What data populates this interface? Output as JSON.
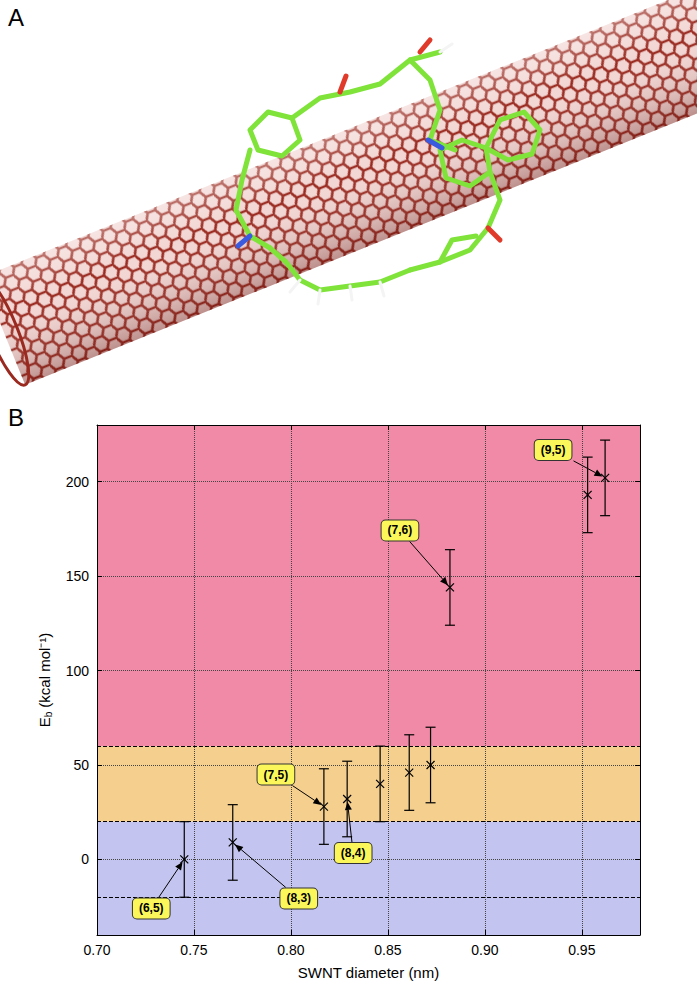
{
  "panel_labels": [
    "A",
    "B"
  ],
  "chart_data": {
    "type": "scatter",
    "x": [
      0.745,
      0.77,
      0.817,
      0.829,
      0.846,
      0.861,
      0.872,
      0.882,
      0.953,
      0.962
    ],
    "values": [
      0,
      9,
      28,
      32,
      40,
      46,
      50,
      144,
      193,
      202
    ],
    "errors": [
      20,
      20,
      20,
      20,
      20,
      20,
      20,
      20,
      20,
      20
    ],
    "point_labels": [
      "(6,5)",
      "(8,3)",
      "(7,5)",
      "(8,4)",
      null,
      null,
      null,
      "(7,6)",
      null,
      "(9,5)"
    ],
    "marker": "x",
    "color": "#000000",
    "xlabel": "SWNT diameter (nm)",
    "ylabel": "Eb (kcal mol⁻¹)",
    "xlim": [
      0.7,
      0.98
    ],
    "xticks": [
      {
        "value": 0.7,
        "label": "0.70"
      },
      {
        "value": 0.75,
        "label": "0.75"
      },
      {
        "value": 0.8,
        "label": "0.80"
      },
      {
        "value": 0.85,
        "label": "0.85"
      },
      {
        "value": 0.9,
        "label": "0.90"
      },
      {
        "value": 0.95,
        "label": "0.95"
      }
    ],
    "ylim": [
      -40,
      230
    ],
    "yticks": [
      0,
      50,
      100,
      150,
      200
    ],
    "grid": true,
    "regions": [
      {
        "from": -40,
        "to": 20,
        "color": "#c3c5f0"
      },
      {
        "from": 20,
        "to": 60,
        "color": "#f4cf8e"
      },
      {
        "from": 60,
        "to": 230,
        "color": "#f08aa6"
      }
    ],
    "reference_lines": [
      -20,
      20,
      60
    ]
  }
}
